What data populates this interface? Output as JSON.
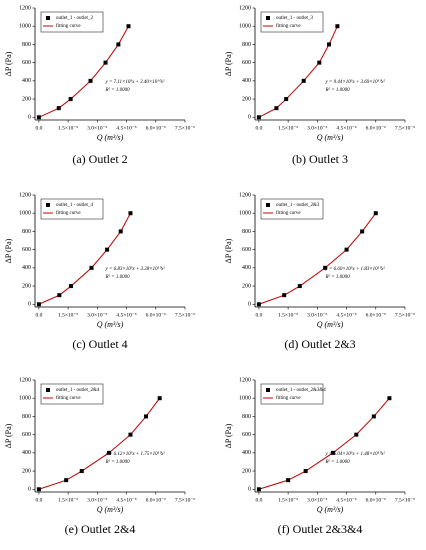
{
  "chart_data": [
    {
      "type": "scatter",
      "caption": "(a) Outlet 2",
      "xlabel": "Q (m³/s)",
      "ylabel": "ΔP (Pa)",
      "xlim": [
        -2e-07,
        7.5e-06
      ],
      "ylim": [
        -30,
        1200
      ],
      "xticks": [
        {
          "value": 0,
          "label": "0.0"
        },
        {
          "value": 1.5e-06,
          "label": "1.5×10⁻⁶"
        },
        {
          "value": 3e-06,
          "label": "3.0×10⁻⁶"
        },
        {
          "value": 4.5e-06,
          "label": "4.5×10⁻⁶"
        },
        {
          "value": 6e-06,
          "label": "6.0×10⁻⁶"
        },
        {
          "value": 7.5e-06,
          "label": "7.5×10⁻⁶"
        }
      ],
      "yticks": [
        0,
        200,
        400,
        600,
        800,
        1000,
        1200
      ],
      "series": [
        {
          "name": "outlet_1 - outlet_2",
          "mode": "markers",
          "color": "#000000",
          "x": [
            0,
            1.02e-06,
            1.63e-06,
            2.65e-06,
            3.42e-06,
            4.08e-06,
            4.6e-06
          ],
          "values": [
            0,
            100,
            200,
            400,
            600,
            800,
            1000
          ]
        },
        {
          "name": "fitting curve",
          "mode": "line",
          "color": "#c00000",
          "x": [
            0,
            1.02e-06,
            1.63e-06,
            2.65e-06,
            3.42e-06,
            4.08e-06,
            4.6e-06
          ],
          "values": [
            0,
            100,
            200,
            400,
            600,
            800,
            1000
          ]
        }
      ],
      "annotations": [
        "y = 7.11×10⁵x + 3.40×10¹⁰x²",
        "R² = 1.0000"
      ]
    },
    {
      "type": "scatter",
      "caption": "(b) Outlet 3",
      "xlabel": "Q (m³/s)",
      "ylabel": "ΔP (Pa)",
      "xlim": [
        -2e-07,
        7.5e-06
      ],
      "ylim": [
        -30,
        1200
      ],
      "xticks": [
        {
          "value": 0,
          "label": "0.0"
        },
        {
          "value": 1.5e-06,
          "label": "1.5×10⁻⁶"
        },
        {
          "value": 3e-06,
          "label": "3.0×10⁻⁶"
        },
        {
          "value": 4.5e-06,
          "label": "4.5×10⁻⁶"
        },
        {
          "value": 6e-06,
          "label": "6.0×10⁻⁶"
        },
        {
          "value": 7.5e-06,
          "label": "7.5×10⁻⁶"
        }
      ],
      "yticks": [
        0,
        200,
        400,
        600,
        800,
        1000,
        1200
      ],
      "series": [
        {
          "name": "outlet_1 - outlet_3",
          "mode": "markers",
          "color": "#000000",
          "x": [
            0,
            9e-07,
            1.4e-06,
            2.3e-06,
            3.1e-06,
            3.6e-06,
            4.03e-06
          ],
          "values": [
            0,
            100,
            200,
            400,
            600,
            800,
            1000
          ]
        },
        {
          "name": "fitting curve",
          "mode": "line",
          "color": "#c00000",
          "x": [
            0,
            9e-07,
            1.4e-06,
            2.3e-06,
            3.1e-06,
            3.6e-06,
            4.03e-06
          ],
          "values": [
            0,
            100,
            200,
            400,
            600,
            800,
            1000
          ]
        }
      ],
      "annotations": [
        "y = 9.44×10⁵x + 3.69×10¹⁰x²",
        "R² = 1.0000"
      ]
    },
    {
      "type": "scatter",
      "caption": "(c) Outlet 4",
      "xlabel": "Q (m³/s)",
      "ylabel": "ΔP (Pa)",
      "xlim": [
        -2e-07,
        7.5e-06
      ],
      "ylim": [
        -30,
        1200
      ],
      "xticks": [
        {
          "value": 0,
          "label": "0.0"
        },
        {
          "value": 1.5e-06,
          "label": "1.5×10⁻⁶"
        },
        {
          "value": 3e-06,
          "label": "3.0×10⁻⁶"
        },
        {
          "value": 4.5e-06,
          "label": "4.5×10⁻⁶"
        },
        {
          "value": 6e-06,
          "label": "6.0×10⁻⁶"
        },
        {
          "value": 7.5e-06,
          "label": "7.5×10⁻⁶"
        }
      ],
      "yticks": [
        0,
        200,
        400,
        600,
        800,
        1000,
        1200
      ],
      "series": [
        {
          "name": "outlet_1 - outlet_4",
          "mode": "markers",
          "color": "#000000",
          "x": [
            0,
            1.05e-06,
            1.65e-06,
            2.7e-06,
            3.5e-06,
            4.2e-06,
            4.7e-06
          ],
          "values": [
            0,
            100,
            200,
            400,
            600,
            800,
            1000
          ]
        },
        {
          "name": "fitting curve",
          "mode": "line",
          "color": "#c00000",
          "x": [
            0,
            1.05e-06,
            1.65e-06,
            2.7e-06,
            3.5e-06,
            4.2e-06,
            4.7e-06
          ],
          "values": [
            0,
            100,
            200,
            400,
            600,
            800,
            1000
          ]
        }
      ],
      "annotations": [
        "y = 6.83×10⁵x + 3.28×10¹⁰x²",
        "R² = 1.0000"
      ]
    },
    {
      "type": "scatter",
      "caption": "(d) Outlet 2&3",
      "xlabel": "Q (m³/s)",
      "ylabel": "ΔP (Pa)",
      "xlim": [
        -2e-07,
        7.5e-06
      ],
      "ylim": [
        -30,
        1200
      ],
      "xticks": [
        {
          "value": 0,
          "label": "0.0"
        },
        {
          "value": 1.5e-06,
          "label": "1.5×10⁻⁶"
        },
        {
          "value": 3e-06,
          "label": "3.0×10⁻⁶"
        },
        {
          "value": 4.5e-06,
          "label": "4.5×10⁻⁶"
        },
        {
          "value": 6e-06,
          "label": "6.0×10⁻⁶"
        },
        {
          "value": 7.5e-06,
          "label": "7.5×10⁻⁶"
        }
      ],
      "yticks": [
        0,
        200,
        400,
        600,
        800,
        1000,
        1200
      ],
      "series": [
        {
          "name": "outlet_1 - outlet_2&3",
          "mode": "markers",
          "color": "#000000",
          "x": [
            0,
            1.3e-06,
            2.1e-06,
            3.4e-06,
            4.5e-06,
            5.3e-06,
            6e-06
          ],
          "values": [
            0,
            100,
            200,
            400,
            600,
            800,
            1000
          ]
        },
        {
          "name": "fitting curve",
          "mode": "line",
          "color": "#c00000",
          "x": [
            0,
            1.3e-06,
            2.1e-06,
            3.4e-06,
            4.5e-06,
            5.3e-06,
            6e-06
          ],
          "values": [
            0,
            100,
            200,
            400,
            600,
            800,
            1000
          ]
        }
      ],
      "annotations": [
        "y = 6.60×10⁵x + 1.83×10¹⁰x²",
        "R² = 1.0000"
      ]
    },
    {
      "type": "scatter",
      "caption": "(e) Outlet 2&4",
      "xlabel": "Q (m³/s)",
      "ylabel": "ΔP (Pa)",
      "xlim": [
        -2e-07,
        7.5e-06
      ],
      "ylim": [
        -30,
        1200
      ],
      "xticks": [
        {
          "value": 0,
          "label": "0.0"
        },
        {
          "value": 1.5e-06,
          "label": "1.5×10⁻⁶"
        },
        {
          "value": 3e-06,
          "label": "3.0×10⁻⁶"
        },
        {
          "value": 4.5e-06,
          "label": "4.5×10⁻⁶"
        },
        {
          "value": 6e-06,
          "label": "6.0×10⁻⁶"
        },
        {
          "value": 7.5e-06,
          "label": "7.5×10⁻⁶"
        }
      ],
      "yticks": [
        0,
        200,
        400,
        600,
        800,
        1000,
        1200
      ],
      "series": [
        {
          "name": "outlet_1 - outlet_2&4",
          "mode": "markers",
          "color": "#000000",
          "x": [
            0,
            1.4e-06,
            2.2e-06,
            3.6e-06,
            4.7e-06,
            5.5e-06,
            6.2e-06
          ],
          "values": [
            0,
            100,
            200,
            400,
            600,
            800,
            1000
          ]
        },
        {
          "name": "fitting curve",
          "mode": "line",
          "color": "#c00000",
          "x": [
            0,
            1.4e-06,
            2.2e-06,
            3.6e-06,
            4.7e-06,
            5.5e-06,
            6.2e-06
          ],
          "values": [
            0,
            100,
            200,
            400,
            600,
            800,
            1000
          ]
        }
      ],
      "annotations": [
        "y = 6.12×10⁵x + 1.75×10¹⁰x²",
        "R² = 1.0000"
      ]
    },
    {
      "type": "scatter",
      "caption": "(f) Outlet 2&3&4",
      "xlabel": "Q (m³/s)",
      "ylabel": "ΔP (Pa)",
      "xlim": [
        -2e-07,
        7.5e-06
      ],
      "ylim": [
        -30,
        1200
      ],
      "xticks": [
        {
          "value": 0,
          "label": "0.0"
        },
        {
          "value": 1.5e-06,
          "label": "1.5×10⁻⁶"
        },
        {
          "value": 3e-06,
          "label": "3.0×10⁻⁶"
        },
        {
          "value": 4.5e-06,
          "label": "4.5×10⁻⁶"
        },
        {
          "value": 6e-06,
          "label": "6.0×10⁻⁶"
        },
        {
          "value": 7.5e-06,
          "label": "7.5×10⁻⁶"
        }
      ],
      "yticks": [
        0,
        200,
        400,
        600,
        800,
        1000,
        1200
      ],
      "series": [
        {
          "name": "outlet_1 - outlet_2&3&4",
          "mode": "markers",
          "color": "#000000",
          "x": [
            0,
            1.5e-06,
            2.4e-06,
            3.8e-06,
            5e-06,
            5.9e-06,
            6.7e-06
          ],
          "values": [
            0,
            100,
            200,
            400,
            600,
            800,
            1000
          ]
        },
        {
          "name": "fitting curve",
          "mode": "line",
          "color": "#c00000",
          "x": [
            0,
            1.5e-06,
            2.4e-06,
            3.8e-06,
            5e-06,
            5.9e-06,
            6.7e-06
          ],
          "values": [
            0,
            100,
            200,
            400,
            600,
            800,
            1000
          ]
        }
      ],
      "annotations": [
        "y = 6.04×10⁵x + 1.48×10¹⁰x²",
        "R² = 1.0000"
      ]
    }
  ]
}
